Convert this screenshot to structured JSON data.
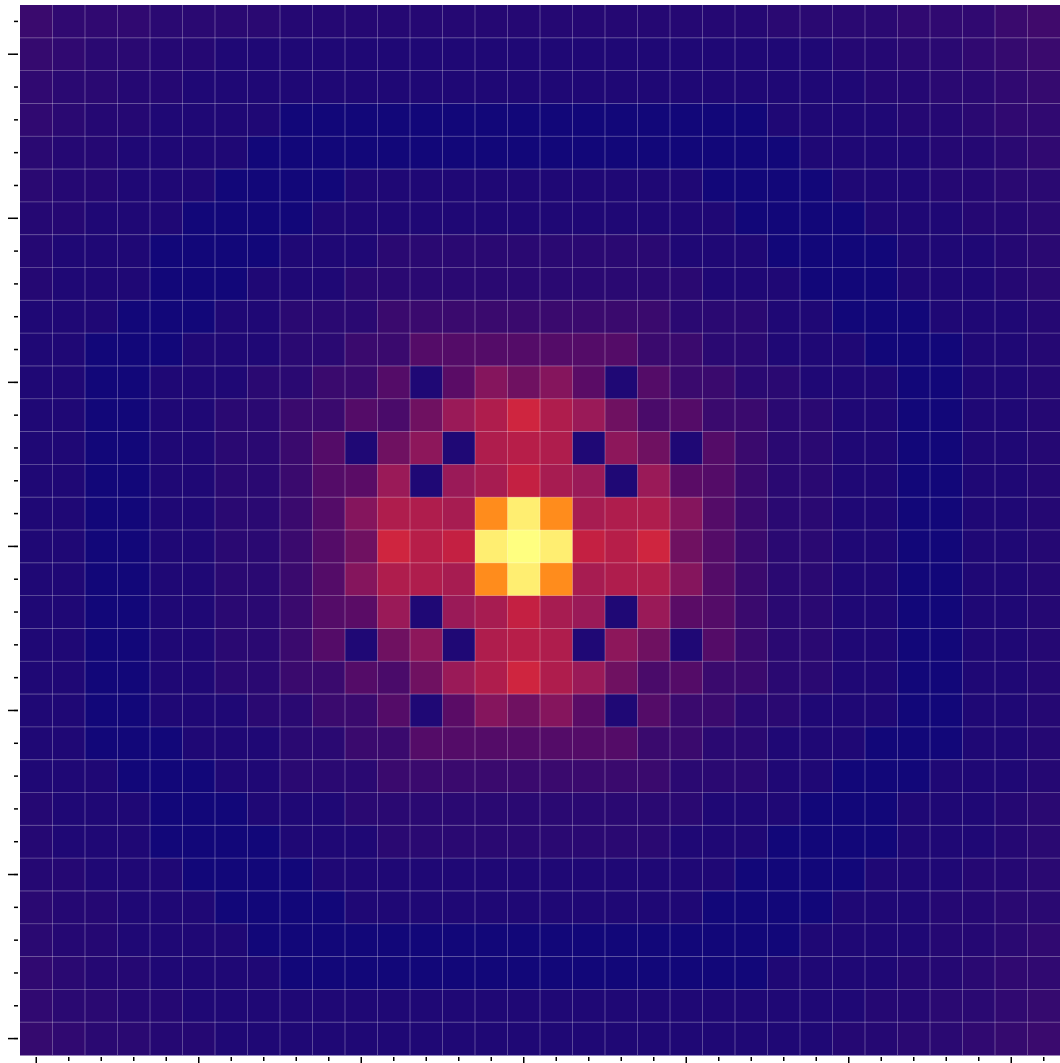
{
  "chart_data": {
    "type": "heatmap",
    "zlim": [
      0,
      100
    ],
    "colormap": [
      [
        0,
        "#0b057f"
      ],
      [
        6,
        "#120779"
      ],
      [
        12,
        "#250873"
      ],
      [
        20,
        "#3a0a6e"
      ],
      [
        30,
        "#5a0c66"
      ],
      [
        45,
        "#9a1a58"
      ],
      [
        55,
        "#c42042"
      ],
      [
        65,
        "#e83238"
      ],
      [
        80,
        "#ff8c1c"
      ],
      [
        100,
        "#ffff80"
      ]
    ],
    "grid": true,
    "xticks": [
      0,
      5,
      10,
      15,
      20,
      25,
      30
    ],
    "yticks": [
      1,
      6,
      11,
      16,
      21,
      26,
      31
    ],
    "values": [
      [
        20,
        16,
        16,
        16,
        14,
        14,
        14,
        14,
        12,
        12,
        12,
        12,
        12,
        12,
        12,
        12,
        12,
        12,
        12,
        12,
        12,
        12,
        12,
        14,
        14,
        14,
        14,
        16,
        16,
        16,
        20,
        22
      ],
      [
        18,
        16,
        14,
        14,
        12,
        12,
        10,
        10,
        10,
        10,
        10,
        10,
        10,
        10,
        10,
        10,
        10,
        10,
        10,
        10,
        10,
        10,
        10,
        10,
        10,
        12,
        12,
        14,
        14,
        16,
        18,
        20
      ],
      [
        16,
        14,
        14,
        12,
        12,
        10,
        10,
        10,
        10,
        10,
        10,
        10,
        10,
        10,
        10,
        10,
        10,
        10,
        10,
        10,
        10,
        10,
        10,
        10,
        10,
        10,
        12,
        12,
        14,
        14,
        16,
        18
      ],
      [
        16,
        14,
        12,
        12,
        10,
        10,
        10,
        10,
        6,
        6,
        6,
        6,
        6,
        6,
        6,
        6,
        6,
        6,
        6,
        6,
        6,
        6,
        6,
        10,
        10,
        10,
        10,
        12,
        12,
        14,
        16,
        16
      ],
      [
        14,
        12,
        12,
        10,
        10,
        10,
        10,
        6,
        6,
        6,
        6,
        6,
        6,
        6,
        6,
        6,
        6,
        6,
        6,
        6,
        6,
        6,
        6,
        6,
        10,
        10,
        10,
        10,
        12,
        12,
        14,
        16
      ],
      [
        14,
        12,
        12,
        10,
        10,
        10,
        6,
        6,
        6,
        6,
        10,
        10,
        10,
        10,
        10,
        10,
        10,
        10,
        10,
        10,
        10,
        6,
        6,
        6,
        6,
        10,
        10,
        10,
        12,
        12,
        14,
        14
      ],
      [
        12,
        12,
        10,
        10,
        10,
        6,
        6,
        6,
        6,
        10,
        10,
        10,
        10,
        10,
        10,
        10,
        10,
        10,
        10,
        10,
        10,
        10,
        6,
        6,
        6,
        6,
        10,
        10,
        10,
        12,
        12,
        14
      ],
      [
        12,
        10,
        10,
        10,
        6,
        6,
        6,
        6,
        10,
        10,
        10,
        14,
        14,
        14,
        14,
        14,
        14,
        14,
        14,
        14,
        10,
        10,
        10,
        6,
        6,
        6,
        6,
        10,
        10,
        10,
        12,
        14
      ],
      [
        12,
        10,
        10,
        10,
        6,
        6,
        6,
        10,
        10,
        10,
        14,
        14,
        14,
        14,
        14,
        14,
        14,
        14,
        14,
        14,
        14,
        10,
        10,
        10,
        6,
        6,
        6,
        10,
        10,
        10,
        12,
        14
      ],
      [
        10,
        10,
        10,
        6,
        6,
        6,
        10,
        10,
        14,
        14,
        14,
        20,
        20,
        20,
        20,
        20,
        20,
        20,
        20,
        20,
        14,
        14,
        14,
        10,
        10,
        6,
        6,
        6,
        10,
        10,
        10,
        12
      ],
      [
        10,
        10,
        6,
        6,
        6,
        10,
        10,
        10,
        14,
        14,
        20,
        20,
        28,
        28,
        28,
        28,
        28,
        28,
        28,
        20,
        20,
        14,
        14,
        10,
        10,
        10,
        6,
        6,
        6,
        10,
        10,
        12
      ],
      [
        10,
        10,
        6,
        6,
        10,
        10,
        10,
        14,
        14,
        20,
        20,
        28,
        10,
        30,
        40,
        35,
        40,
        30,
        10,
        28,
        20,
        20,
        14,
        14,
        10,
        10,
        10,
        6,
        6,
        10,
        10,
        12
      ],
      [
        10,
        10,
        6,
        6,
        10,
        10,
        14,
        14,
        20,
        20,
        28,
        25,
        35,
        45,
        50,
        58,
        50,
        45,
        35,
        25,
        28,
        20,
        20,
        14,
        14,
        10,
        10,
        6,
        6,
        10,
        10,
        12
      ],
      [
        10,
        10,
        6,
        6,
        10,
        10,
        14,
        14,
        20,
        28,
        10,
        35,
        42,
        10,
        50,
        52,
        50,
        10,
        42,
        35,
        10,
        28,
        20,
        14,
        14,
        10,
        10,
        6,
        6,
        10,
        10,
        12
      ],
      [
        10,
        10,
        6,
        6,
        10,
        10,
        14,
        14,
        20,
        28,
        30,
        45,
        10,
        45,
        48,
        55,
        48,
        45,
        10,
        45,
        30,
        28,
        20,
        14,
        14,
        10,
        10,
        6,
        6,
        10,
        10,
        12
      ],
      [
        10,
        10,
        6,
        6,
        10,
        10,
        14,
        14,
        20,
        28,
        40,
        50,
        50,
        48,
        80,
        97,
        80,
        48,
        50,
        50,
        40,
        28,
        20,
        14,
        14,
        10,
        10,
        6,
        6,
        10,
        10,
        12
      ],
      [
        10,
        10,
        6,
        6,
        10,
        10,
        14,
        14,
        20,
        28,
        35,
        58,
        52,
        55,
        97,
        100,
        97,
        55,
        52,
        58,
        35,
        28,
        20,
        14,
        14,
        10,
        10,
        6,
        6,
        10,
        10,
        12
      ],
      [
        10,
        10,
        6,
        6,
        10,
        10,
        14,
        14,
        20,
        28,
        40,
        50,
        50,
        48,
        80,
        97,
        80,
        48,
        50,
        50,
        40,
        28,
        20,
        14,
        14,
        10,
        10,
        6,
        6,
        10,
        10,
        12
      ],
      [
        10,
        10,
        6,
        6,
        10,
        10,
        14,
        14,
        20,
        28,
        30,
        45,
        10,
        45,
        48,
        55,
        48,
        45,
        10,
        45,
        30,
        28,
        20,
        14,
        14,
        10,
        10,
        6,
        6,
        10,
        10,
        12
      ],
      [
        10,
        10,
        6,
        6,
        10,
        10,
        14,
        14,
        20,
        28,
        10,
        35,
        42,
        10,
        50,
        52,
        50,
        10,
        42,
        35,
        10,
        28,
        20,
        14,
        14,
        10,
        10,
        6,
        6,
        10,
        10,
        12
      ],
      [
        10,
        10,
        6,
        6,
        10,
        10,
        14,
        14,
        20,
        20,
        28,
        25,
        35,
        45,
        50,
        58,
        50,
        45,
        35,
        25,
        28,
        20,
        20,
        14,
        14,
        10,
        10,
        6,
        6,
        10,
        10,
        12
      ],
      [
        10,
        10,
        6,
        6,
        10,
        10,
        10,
        14,
        14,
        20,
        20,
        28,
        10,
        30,
        40,
        35,
        40,
        30,
        10,
        28,
        20,
        20,
        14,
        14,
        10,
        10,
        10,
        6,
        6,
        10,
        10,
        12
      ],
      [
        10,
        10,
        6,
        6,
        6,
        10,
        10,
        10,
        14,
        14,
        20,
        20,
        28,
        28,
        28,
        28,
        28,
        28,
        28,
        20,
        20,
        14,
        14,
        10,
        10,
        10,
        6,
        6,
        6,
        10,
        10,
        12
      ],
      [
        10,
        10,
        10,
        6,
        6,
        6,
        10,
        10,
        14,
        14,
        14,
        20,
        20,
        20,
        20,
        20,
        20,
        20,
        20,
        20,
        14,
        14,
        14,
        10,
        10,
        6,
        6,
        6,
        10,
        10,
        10,
        12
      ],
      [
        12,
        10,
        10,
        10,
        6,
        6,
        6,
        10,
        10,
        10,
        14,
        14,
        14,
        14,
        14,
        14,
        14,
        14,
        14,
        14,
        14,
        10,
        10,
        10,
        6,
        6,
        6,
        10,
        10,
        10,
        12,
        14
      ],
      [
        12,
        10,
        10,
        10,
        6,
        6,
        6,
        6,
        10,
        10,
        10,
        14,
        14,
        14,
        14,
        14,
        14,
        14,
        14,
        14,
        10,
        10,
        10,
        6,
        6,
        6,
        6,
        10,
        10,
        10,
        12,
        14
      ],
      [
        12,
        12,
        10,
        10,
        10,
        6,
        6,
        6,
        6,
        10,
        10,
        10,
        10,
        10,
        10,
        10,
        10,
        10,
        10,
        10,
        10,
        10,
        6,
        6,
        6,
        6,
        10,
        10,
        10,
        12,
        12,
        14
      ],
      [
        14,
        12,
        12,
        10,
        10,
        10,
        6,
        6,
        6,
        6,
        10,
        10,
        10,
        10,
        10,
        10,
        10,
        10,
        10,
        10,
        10,
        6,
        6,
        6,
        6,
        10,
        10,
        10,
        12,
        12,
        14,
        14
      ],
      [
        14,
        12,
        12,
        10,
        10,
        10,
        10,
        6,
        6,
        6,
        6,
        6,
        6,
        6,
        6,
        6,
        6,
        6,
        6,
        6,
        6,
        6,
        6,
        6,
        10,
        10,
        10,
        10,
        12,
        12,
        14,
        16
      ],
      [
        16,
        14,
        12,
        12,
        10,
        10,
        10,
        10,
        6,
        6,
        6,
        6,
        6,
        6,
        6,
        6,
        6,
        6,
        6,
        6,
        6,
        6,
        6,
        10,
        10,
        10,
        10,
        12,
        12,
        14,
        16,
        16
      ],
      [
        16,
        14,
        14,
        12,
        12,
        10,
        10,
        10,
        10,
        10,
        10,
        10,
        10,
        10,
        10,
        10,
        10,
        10,
        10,
        10,
        10,
        10,
        10,
        10,
        10,
        10,
        12,
        12,
        14,
        14,
        16,
        18
      ],
      [
        18,
        16,
        14,
        14,
        12,
        12,
        10,
        10,
        10,
        10,
        10,
        10,
        10,
        10,
        10,
        10,
        10,
        10,
        10,
        10,
        10,
        10,
        10,
        10,
        10,
        12,
        12,
        14,
        14,
        16,
        18,
        20
      ]
    ]
  }
}
